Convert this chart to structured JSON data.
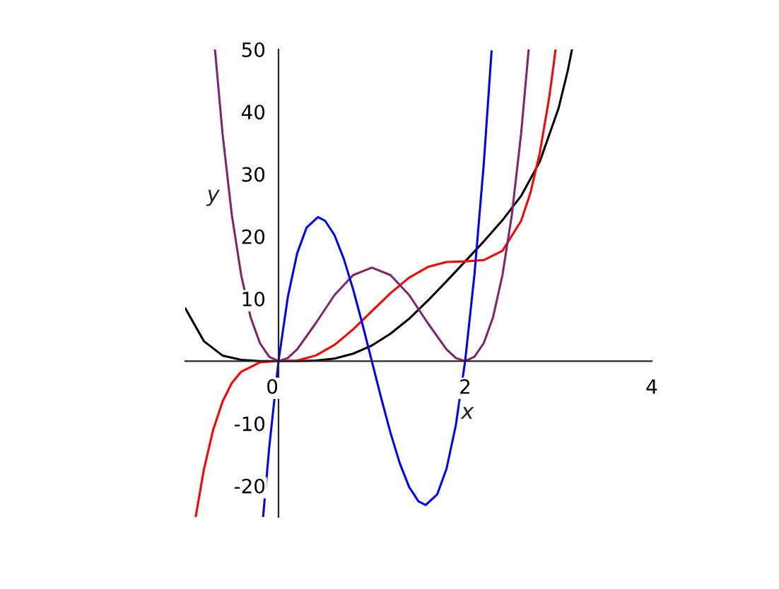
{
  "chart_data": {
    "type": "line",
    "xlabel": "x",
    "ylabel": "y",
    "xlim": [
      -1,
      4
    ],
    "ylim": [
      -25,
      50
    ],
    "xticks": [
      0,
      2,
      4
    ],
    "yticks": [
      -20,
      -10,
      10,
      20,
      30,
      40,
      50
    ],
    "series": [
      {
        "color": "#000000",
        "x": [
          -1,
          -0.8,
          -0.6,
          -0.4,
          -0.2,
          0,
          0.2,
          0.4,
          0.6,
          0.8,
          1,
          1.2,
          1.4,
          1.6,
          1.8,
          2,
          2.2,
          2.4,
          2.6,
          2.8,
          3,
          3.1,
          3.145
        ],
        "values": [
          8.5,
          3.2,
          0.9,
          0.2,
          0,
          0,
          0,
          0.1,
          0.4,
          1.2,
          2.5,
          4.4,
          6.8,
          9.7,
          12.8,
          16,
          19.2,
          22.6,
          26.5,
          32,
          40.5,
          46.6,
          50
        ]
      },
      {
        "color": "#ff0000",
        "x": [
          -0.888,
          -0.8,
          -0.7,
          -0.6,
          -0.5,
          -0.4,
          -0.2,
          0,
          0.2,
          0.4,
          0.6,
          0.8,
          1,
          1.2,
          1.4,
          1.6,
          1.8,
          2,
          2.2,
          2.4,
          2.6,
          2.7,
          2.8,
          2.9,
          2.95,
          2.968
        ],
        "values": [
          -25,
          -17.4,
          -11,
          -6.5,
          -3.5,
          -1.7,
          -0.2,
          0,
          0.1,
          0.9,
          2.6,
          5.1,
          8,
          10.9,
          13.4,
          15.1,
          15.9,
          16,
          16.2,
          17.7,
          22.5,
          27,
          33.4,
          42.2,
          47.7,
          49.9
        ]
      },
      {
        "color": "#80246b",
        "x": [
          -0.681,
          -0.6,
          -0.5,
          -0.4,
          -0.3,
          -0.2,
          -0.1,
          0,
          0.1,
          0.2,
          0.4,
          0.6,
          0.8,
          1,
          1.2,
          1.4,
          1.6,
          1.8,
          1.9,
          2,
          2.1,
          2.2,
          2.3,
          2.4,
          2.5,
          2.6,
          2.681
        ],
        "values": [
          50,
          36.5,
          23.4,
          13.8,
          7.1,
          2.9,
          0.7,
          0,
          0.5,
          1.9,
          6.1,
          10.6,
          13.8,
          15,
          13.8,
          10.6,
          6.1,
          1.9,
          0.5,
          0,
          0.7,
          2.9,
          7.1,
          13.8,
          23.4,
          36.5,
          50
        ]
      },
      {
        "color": "#0000ff",
        "x": [
          -0.165,
          -0.1,
          0,
          0.1,
          0.2,
          0.3,
          0.423,
          0.5,
          0.6,
          0.7,
          0.8,
          0.9,
          1,
          1.1,
          1.2,
          1.3,
          1.4,
          1.5,
          1.577,
          1.7,
          1.8,
          1.9,
          2,
          2.1,
          2.2,
          2.283
        ],
        "values": [
          -25,
          -13.9,
          0,
          10.3,
          17.3,
          21.4,
          23.1,
          22.5,
          20.2,
          16.4,
          11.5,
          5.9,
          0,
          -5.9,
          -11.5,
          -16.4,
          -20.2,
          -22.5,
          -23.1,
          -21.4,
          -17.3,
          -10.3,
          0,
          13.9,
          31.7,
          49.7
        ]
      }
    ]
  }
}
